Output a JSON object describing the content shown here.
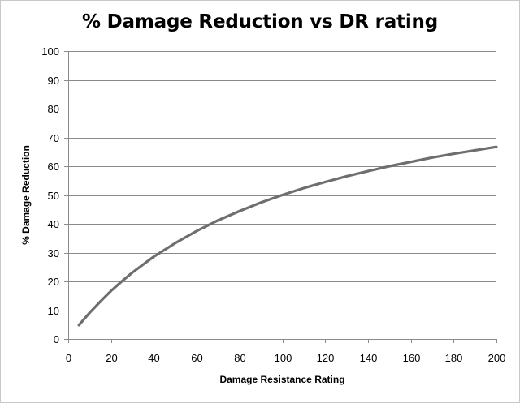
{
  "chart_data": {
    "type": "line",
    "title": "% Damage Reduction vs DR rating",
    "xlabel": "Damage Resistance Rating",
    "ylabel": "% Damage Reduction",
    "xlim": [
      0,
      200
    ],
    "ylim": [
      0,
      100
    ],
    "x_ticks": [
      "0",
      "20",
      "40",
      "60",
      "80",
      "100",
      "120",
      "140",
      "160",
      "180",
      "200"
    ],
    "y_ticks": [
      "0",
      "10",
      "20",
      "30",
      "40",
      "50",
      "60",
      "70",
      "80",
      "90",
      "100"
    ],
    "grid": "horizontal",
    "legend": "none",
    "series": [
      {
        "color": "#6e6e6e",
        "x": [
          5,
          10,
          15,
          20,
          25,
          30,
          40,
          50,
          60,
          70,
          80,
          90,
          100,
          110,
          120,
          130,
          140,
          150,
          160,
          170,
          180,
          190,
          200
        ],
        "y": [
          4.8,
          9.1,
          13.0,
          16.7,
          20.0,
          23.1,
          28.6,
          33.3,
          37.5,
          41.2,
          44.4,
          47.4,
          50.0,
          52.4,
          54.5,
          56.5,
          58.3,
          60.0,
          61.5,
          63.0,
          64.3,
          65.5,
          66.7
        ]
      }
    ],
    "colors": {
      "line": "#6e6e6e",
      "grid": "#8a8a8a",
      "frame": "#c8c8c8"
    }
  }
}
